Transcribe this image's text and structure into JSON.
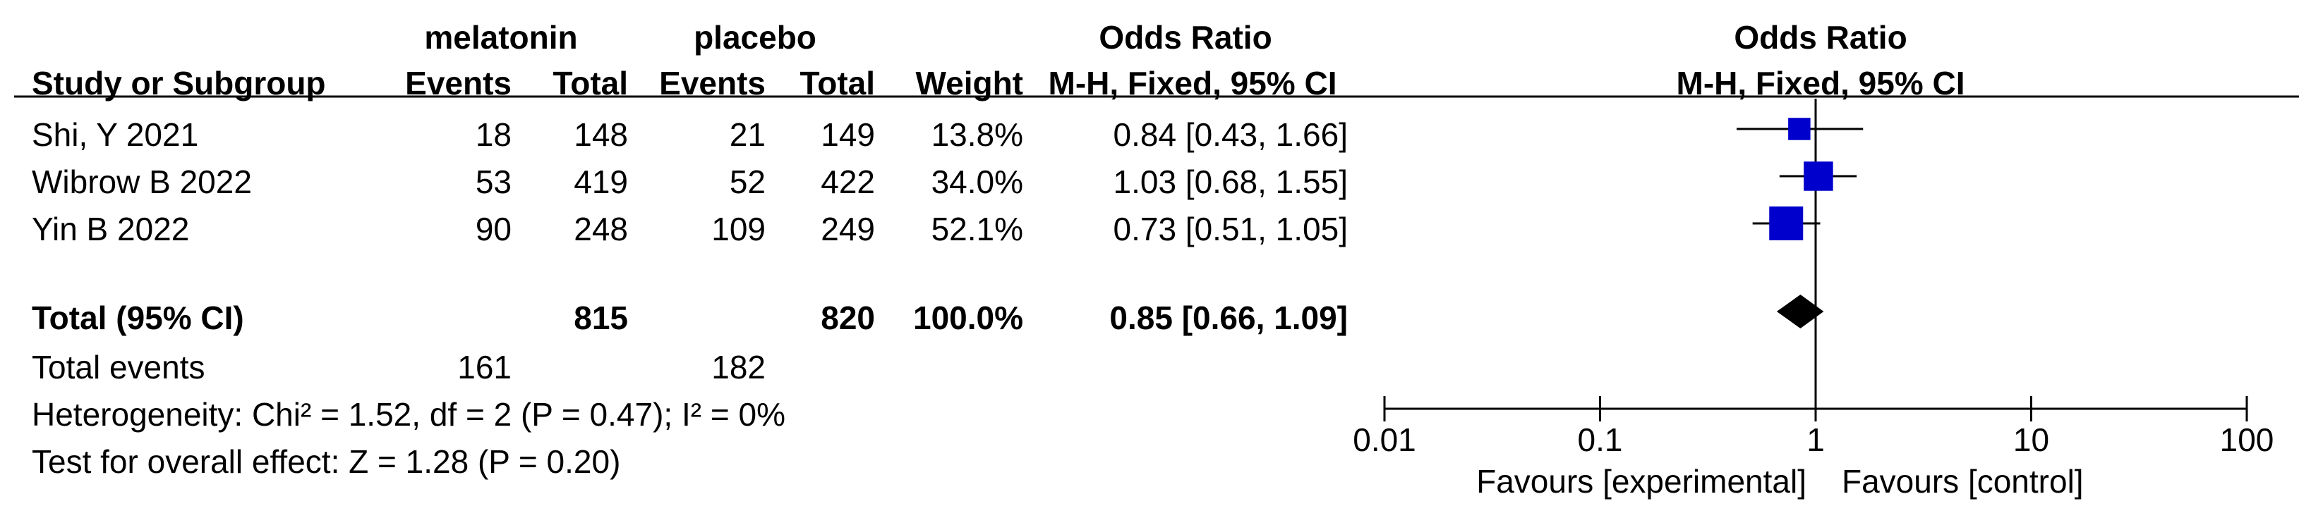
{
  "header": {
    "group1": "melatonin",
    "group2": "placebo",
    "or_left": "Odds Ratio",
    "or_right": "Odds Ratio",
    "study_col": "Study or Subgroup",
    "events1": "Events",
    "total1": "Total",
    "events2": "Events",
    "total2": "Total",
    "weight": "Weight",
    "method_left": "M-H, Fixed, 95% CI",
    "method_right": "M-H, Fixed, 95% CI"
  },
  "studies": [
    {
      "name": "Shi, Y 2021",
      "events1": "18",
      "total1": "148",
      "events2": "21",
      "total2": "149",
      "weight": "13.8%",
      "ci_text": "0.84 [0.43, 1.66]"
    },
    {
      "name": "Wibrow B 2022",
      "events1": "53",
      "total1": "419",
      "events2": "52",
      "total2": "422",
      "weight": "34.0%",
      "ci_text": "1.03 [0.68, 1.55]"
    },
    {
      "name": "Yin B 2022",
      "events1": "90",
      "total1": "248",
      "events2": "109",
      "total2": "249",
      "weight": "52.1%",
      "ci_text": "0.73 [0.51, 1.05]"
    }
  ],
  "total": {
    "label": "Total (95% CI)",
    "total1": "815",
    "total2": "820",
    "weight": "100.0%",
    "ci_text": "0.85 [0.66, 1.09]"
  },
  "total_events": {
    "label": "Total events",
    "events1": "161",
    "events2": "182"
  },
  "heterogeneity": "Heterogeneity: Chi² = 1.52, df = 2 (P = 0.47); I² = 0%",
  "overall_effect": "Test for overall effect: Z = 1.28 (P = 0.20)",
  "favours_left": "Favours [experimental]",
  "favours_right": "Favours [control]",
  "colors": {
    "study_marker": "#0000cc",
    "diamond": "#000000",
    "line": "#000000"
  },
  "chart_data": {
    "type": "scatter",
    "scale": "log",
    "xlim": [
      0.01,
      100
    ],
    "ticks": [
      0.01,
      0.1,
      1,
      10,
      100
    ],
    "tick_labels": [
      "0.01",
      "0.1",
      "1",
      "10",
      "100"
    ],
    "reference_line": 1,
    "studies": [
      {
        "name": "Shi, Y 2021",
        "or": 0.84,
        "lower": 0.43,
        "upper": 1.66,
        "weight": 13.8
      },
      {
        "name": "Wibrow B 2022",
        "or": 1.03,
        "lower": 0.68,
        "upper": 1.55,
        "weight": 34.0
      },
      {
        "name": "Yin B 2022",
        "or": 0.73,
        "lower": 0.51,
        "upper": 1.05,
        "weight": 52.1
      }
    ],
    "pooled": {
      "or": 0.85,
      "lower": 0.66,
      "upper": 1.09
    }
  }
}
